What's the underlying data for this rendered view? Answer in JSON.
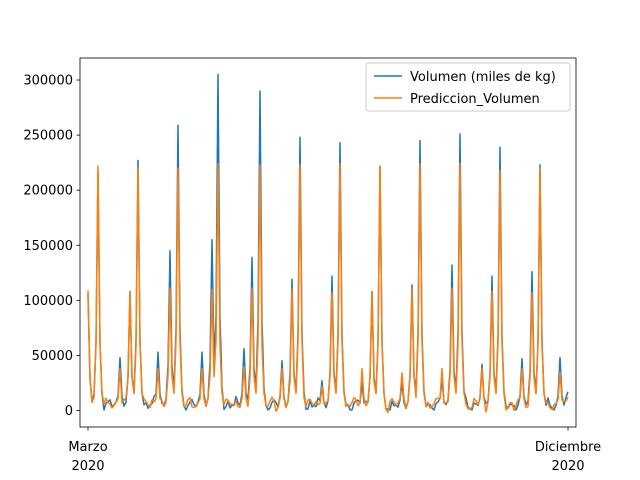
{
  "chart_data": {
    "type": "line",
    "title": "",
    "xlabel": "",
    "ylabel": "",
    "ylim": [
      -15000,
      320000
    ],
    "yticks": [
      0,
      50000,
      100000,
      150000,
      200000,
      250000,
      300000
    ],
    "ytick_labels": [
      "0",
      "50000",
      "100000",
      "150000",
      "200000",
      "250000",
      "300000"
    ],
    "xlim": [
      -4,
      244
    ],
    "xticks": [
      {
        "pos": 0,
        "line1": "Marzo",
        "line2": "2020"
      },
      {
        "pos": 240,
        "line1": "Diciembre",
        "line2": "2020"
      }
    ],
    "legend": {
      "location": "upper right"
    },
    "approx_period_days": 20,
    "peaks": [
      {
        "day": 0,
        "actual": 105000,
        "predicted": 109000
      },
      {
        "day": 5,
        "actual": 217000,
        "predicted": 222000
      },
      {
        "day": 16,
        "actual": 48000,
        "predicted": 38000
      },
      {
        "day": 21,
        "actual": 108000,
        "predicted": 108000
      },
      {
        "day": 25,
        "actual": 227000,
        "predicted": 220000
      },
      {
        "day": 35,
        "actual": 53000,
        "predicted": 38000
      },
      {
        "day": 41,
        "actual": 145000,
        "predicted": 111000
      },
      {
        "day": 45,
        "actual": 259000,
        "predicted": 224000
      },
      {
        "day": 57,
        "actual": 53000,
        "predicted": 38000
      },
      {
        "day": 62,
        "actual": 155000,
        "predicted": 110000
      },
      {
        "day": 65,
        "actual": 305000,
        "predicted": 224000
      },
      {
        "day": 78,
        "actual": 56000,
        "predicted": 40000
      },
      {
        "day": 82,
        "actual": 139000,
        "predicted": 111000
      },
      {
        "day": 86,
        "actual": 290000,
        "predicted": 223000
      },
      {
        "day": 97,
        "actual": 45000,
        "predicted": 38000
      },
      {
        "day": 102,
        "actual": 119000,
        "predicted": 110000
      },
      {
        "day": 106,
        "actual": 248000,
        "predicted": 223000
      },
      {
        "day": 117,
        "actual": 27000,
        "predicted": 22000
      },
      {
        "day": 122,
        "actual": 122000,
        "predicted": 111000
      },
      {
        "day": 126,
        "actual": 243000,
        "predicted": 224000
      },
      {
        "day": 137,
        "actual": 25000,
        "predicted": 38000
      },
      {
        "day": 142,
        "actual": 108000,
        "predicted": 108000
      },
      {
        "day": 146,
        "actual": 221000,
        "predicted": 222000
      },
      {
        "day": 157,
        "actual": 25000,
        "predicted": 38000
      },
      {
        "day": 162,
        "actual": 114000,
        "predicted": 110000
      },
      {
        "day": 166,
        "actual": 245000,
        "predicted": 224000
      },
      {
        "day": 177,
        "actual": 28000,
        "predicted": 38000
      },
      {
        "day": 182,
        "actual": 132000,
        "predicted": 111000
      },
      {
        "day": 186,
        "actual": 251000,
        "predicted": 224000
      },
      {
        "day": 197,
        "actual": 42000,
        "predicted": 38000
      },
      {
        "day": 202,
        "actual": 122000,
        "predicted": 108000
      },
      {
        "day": 206,
        "actual": 239000,
        "predicted": 222000
      },
      {
        "day": 217,
        "actual": 47000,
        "predicted": 38000
      },
      {
        "day": 222,
        "actual": 126000,
        "predicted": 107000
      },
      {
        "day": 226,
        "actual": 223000,
        "predicted": 220000
      },
      {
        "day": 236,
        "actual": 48000,
        "predicted": 35000
      },
      {
        "day": 240,
        "actual": 17000,
        "predicted": 12000
      }
    ],
    "baseline_actual": 5000,
    "baseline_predicted": 6000,
    "series": [
      {
        "name": "Volumen (miles de kg)",
        "color": "#1f77b4"
      },
      {
        "name": "Prediccion_Volumen",
        "color": "#ff7f0e"
      }
    ]
  }
}
